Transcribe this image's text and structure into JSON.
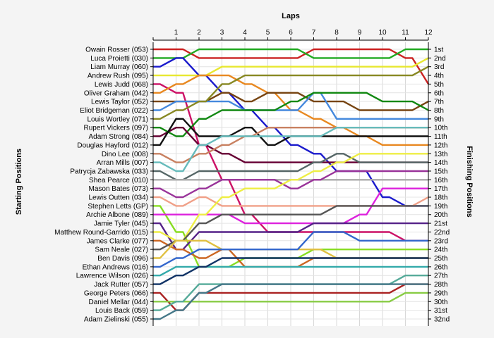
{
  "chart_data": {
    "type": "line",
    "title": "",
    "xlabel": "Laps",
    "ylabel_left": "Starting Positions",
    "ylabel_right": "Finishing Positions",
    "x": [
      0,
      1,
      2,
      3,
      4,
      5,
      6,
      7,
      8,
      9,
      10,
      11,
      12
    ],
    "xlim": [
      0,
      12
    ],
    "ylim": [
      1,
      32
    ],
    "y_inverted": true,
    "grid": true,
    "starting_labels": [
      "Owain Rosser (053)",
      "Luca Proietti (030)",
      "Liam Murray (060)",
      "Andrew Rush (095)",
      "Lewis Judd (068)",
      "Oliver Graham (042)",
      "Lewis Taylor (052)",
      "Eliot Bridgeman (022)",
      "Louis Wortley (071)",
      "Rupert Vickers (097)",
      "Adam Strong (084)",
      "Douglas Hayford (012)",
      "Dino Lee (008)",
      "Arran Mills (007)",
      "Patrycja Zabawska (033)",
      "Shea Pearce (010)",
      "Mason Bates (073)",
      "Lewis Outten (034)",
      "Stephen Letts (GP)",
      "Archie Albone (089)",
      "Jamie Tyler (045)",
      "Matthew Round-Garrido (015)",
      "James Clarke (077)",
      "Sam Neale (027)",
      "Ben Davis (096)",
      "Ethan Andrews (016)",
      "Lawrence Wilson (026)",
      "Jack Rutter (057)",
      "George Peters (066)",
      "Daniel Mellar (044)",
      "Louis Back (059)",
      "Adam Zielinski (055)"
    ],
    "finishing_labels": [
      "1st",
      "2nd",
      "3rd",
      "4th",
      "5th",
      "6th",
      "7th",
      "8th",
      "9th",
      "10th",
      "11th",
      "12th",
      "13th",
      "14th",
      "15th",
      "16th",
      "17th",
      "18th",
      "19th",
      "20th",
      "21st",
      "22nd",
      "23rd",
      "24th",
      "25th",
      "26th",
      "27th",
      "28th",
      "29th",
      "30th",
      "31st",
      "32nd"
    ],
    "series": [
      {
        "color": "#cc2222",
        "values": [
          1,
          1,
          2,
          2,
          2,
          2,
          2,
          1,
          1,
          1,
          1,
          2,
          5
        ]
      },
      {
        "color": "#22aa22",
        "values": [
          2,
          2,
          1,
          1,
          1,
          1,
          1,
          2,
          2,
          2,
          2,
          1,
          1
        ]
      },
      {
        "color": "#1a1acc",
        "values": [
          3,
          2,
          4,
          6,
          8,
          10,
          12,
          13,
          15,
          15,
          18,
          19,
          19
        ]
      },
      {
        "color": "#e8e830",
        "values": [
          4,
          4,
          4,
          3,
          3,
          3,
          3,
          3,
          3,
          3,
          3,
          3,
          2
        ]
      },
      {
        "color": "#cc1166",
        "values": [
          5,
          6,
          12,
          16,
          20,
          22,
          22,
          22,
          22,
          22,
          22,
          23,
          23
        ]
      },
      {
        "color": "#e88820",
        "values": [
          6,
          5,
          4,
          4,
          5,
          6,
          8,
          9,
          10,
          11,
          12,
          12,
          12
        ]
      },
      {
        "color": "#774411",
        "values": [
          7,
          7,
          7,
          6,
          7,
          6,
          6,
          7,
          7,
          8,
          8,
          8,
          7
        ]
      },
      {
        "color": "#4488dd",
        "values": [
          8,
          7,
          7,
          7,
          8,
          8,
          8,
          6,
          9,
          9,
          9,
          9,
          9
        ]
      },
      {
        "color": "#888822",
        "values": [
          9,
          8,
          7,
          5,
          4,
          4,
          4,
          4,
          4,
          4,
          4,
          4,
          3
        ]
      },
      {
        "color": "#118811",
        "values": [
          10,
          11,
          9,
          8,
          8,
          8,
          7,
          6,
          6,
          6,
          7,
          7,
          8
        ]
      },
      {
        "color": "#660033",
        "values": [
          11,
          10,
          12,
          13,
          14,
          14,
          14,
          14,
          14,
          14,
          14,
          14,
          14
        ]
      },
      {
        "color": "#111111",
        "values": [
          12,
          9,
          11,
          11,
          10,
          12,
          11,
          11,
          11,
          11,
          11,
          11,
          11
        ]
      },
      {
        "color": "#c88060",
        "values": [
          13,
          14,
          13,
          12,
          11,
          10,
          10,
          10,
          10,
          10,
          10,
          10,
          10
        ]
      },
      {
        "color": "#66bbbb",
        "values": [
          14,
          15,
          12,
          11,
          11,
          11,
          11,
          11,
          10,
          10,
          10,
          10,
          10
        ]
      },
      {
        "color": "#556666",
        "values": [
          15,
          16,
          15,
          15,
          15,
          15,
          15,
          14,
          13,
          14,
          14,
          14,
          14
        ]
      },
      {
        "color": "#aaaaaa",
        "values": [
          16,
          16,
          16,
          16,
          16,
          16,
          16,
          16,
          16,
          16,
          16,
          16,
          16
        ]
      },
      {
        "color": "#993399",
        "values": [
          17,
          18,
          17,
          16,
          16,
          16,
          17,
          16,
          15,
          15,
          15,
          15,
          15
        ]
      },
      {
        "color": "#f0a088",
        "values": [
          18,
          19,
          18,
          19,
          19,
          19,
          19,
          19,
          19,
          19,
          19,
          19,
          18
        ]
      },
      {
        "color": "#88dd22",
        "values": [
          19,
          22,
          26,
          26,
          25,
          25,
          25,
          24,
          24,
          24,
          24,
          24,
          24
        ]
      },
      {
        "color": "#dd22dd",
        "values": [
          20,
          20,
          20,
          20,
          21,
          21,
          21,
          21,
          21,
          20,
          17,
          17,
          17
        ]
      },
      {
        "color": "#552288",
        "values": [
          21,
          24,
          22,
          22,
          22,
          22,
          22,
          21,
          21,
          21,
          21,
          21,
          21
        ]
      },
      {
        "color": "#eeee44",
        "values": [
          22,
          23,
          20,
          18,
          17,
          17,
          16,
          15,
          14,
          13,
          13,
          13,
          13
        ]
      },
      {
        "color": "#cc6622",
        "values": [
          23,
          24,
          25,
          24,
          26,
          26,
          26,
          25,
          25,
          25,
          25,
          25,
          25
        ]
      },
      {
        "color": "#555555",
        "values": [
          24,
          23,
          21,
          20,
          20,
          20,
          20,
          20,
          19,
          19,
          19,
          19,
          19
        ]
      },
      {
        "color": "#e0c040",
        "values": [
          25,
          23,
          23,
          24,
          24,
          24,
          24,
          24,
          25,
          25,
          25,
          25,
          25
        ]
      },
      {
        "color": "#3366cc",
        "values": [
          26,
          25,
          24,
          24,
          24,
          24,
          24,
          22,
          22,
          23,
          23,
          23,
          23
        ]
      },
      {
        "color": "#33aaaa",
        "values": [
          27,
          26,
          26,
          26,
          26,
          26,
          26,
          26,
          26,
          26,
          26,
          26,
          26
        ]
      },
      {
        "color": "#113366",
        "values": [
          28,
          27,
          26,
          25,
          25,
          25,
          25,
          25,
          25,
          25,
          25,
          25,
          25
        ]
      },
      {
        "color": "#aa2222",
        "values": [
          29,
          31,
          29,
          29,
          29,
          29,
          29,
          29,
          29,
          29,
          29,
          28,
          28
        ]
      },
      {
        "color": "#88cc44",
        "values": [
          30,
          30,
          30,
          30,
          30,
          30,
          30,
          30,
          30,
          30,
          30,
          29,
          29
        ]
      },
      {
        "color": "#55aa99",
        "values": [
          31,
          30,
          28,
          28,
          28,
          28,
          28,
          28,
          28,
          28,
          28,
          27,
          27
        ]
      },
      {
        "color": "#447788",
        "values": [
          32,
          31,
          29,
          28,
          28,
          28,
          28,
          28,
          28,
          28,
          28,
          28,
          28
        ]
      }
    ]
  }
}
